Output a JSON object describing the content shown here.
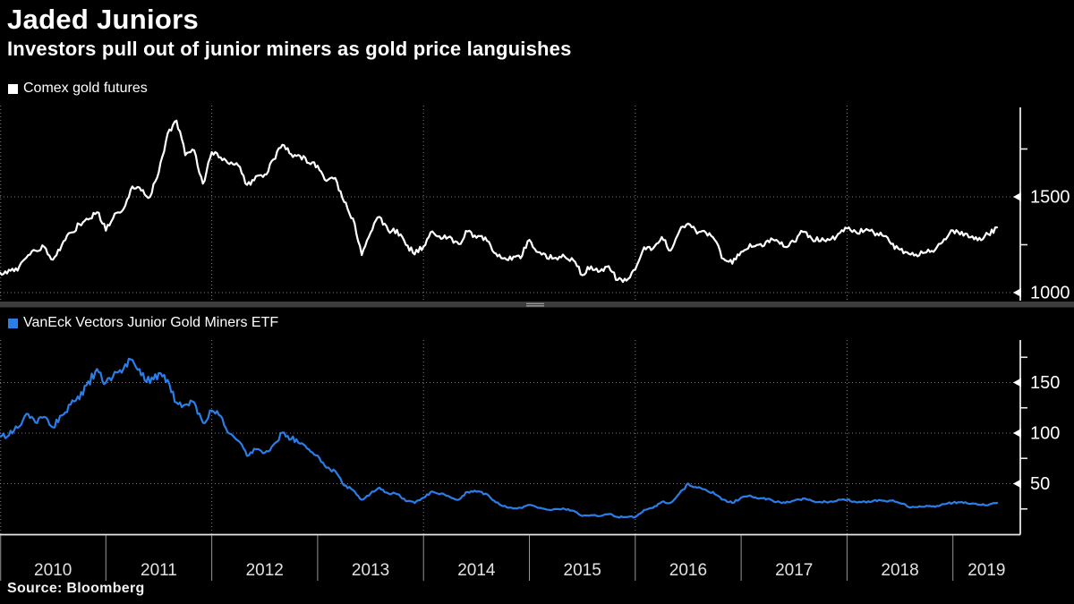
{
  "title": "Jaded Juniors",
  "subtitle": "Investors pull out of junior miners as gold price languishes",
  "source": "Source: Bloomberg",
  "colors": {
    "background": "#000000",
    "axis": "#e8e8e8",
    "grid": "#7d7d7d",
    "separator": "#3d3d3d",
    "separator_grip": "#a8a8a8",
    "year_label": "#e2e2e2",
    "tick_label": "#ffffff",
    "gold_line": "#ffffff",
    "etf_line": "#2b7de8"
  },
  "x_axis": {
    "years": [
      "2010",
      "2011",
      "2012",
      "2013",
      "2014",
      "2015",
      "2016",
      "2017",
      "2018",
      "2019"
    ],
    "gridline_years": [
      2010,
      2012,
      2014,
      2016,
      2018
    ]
  },
  "chart_data": [
    {
      "type": "line",
      "panel": "top",
      "legend": "Comex gold futures",
      "color": "#ffffff",
      "x_start": "2010-01",
      "x_end": "2019-06",
      "x_interval": "monthly",
      "ylim": [
        958,
        1977
      ],
      "yticks_labeled": [
        {
          "value": 1500,
          "label": "1500"
        },
        {
          "value": 1000,
          "label": "1000"
        }
      ],
      "yticks_minor": [
        1750,
        1250
      ],
      "grid": "dotted",
      "legend_position": "top-left",
      "values": [
        1100,
        1118,
        1116,
        1180,
        1215,
        1244,
        1170,
        1248,
        1310,
        1357,
        1386,
        1421,
        1327,
        1411,
        1439,
        1556,
        1536,
        1502,
        1628,
        1828,
        1900,
        1722,
        1746,
        1566,
        1737,
        1711,
        1668,
        1664,
        1558,
        1604,
        1615,
        1691,
        1776,
        1720,
        1715,
        1676,
        1661,
        1588,
        1595,
        1472,
        1387,
        1200,
        1313,
        1396,
        1327,
        1323,
        1250,
        1202,
        1240,
        1321,
        1284,
        1291,
        1250,
        1322,
        1282,
        1287,
        1211,
        1173,
        1176,
        1184,
        1279,
        1213,
        1183,
        1184,
        1190,
        1172,
        1095,
        1135,
        1115,
        1141,
        1065,
        1060,
        1116,
        1234,
        1234,
        1290,
        1215,
        1320,
        1357,
        1311,
        1317,
        1273,
        1174,
        1152,
        1211,
        1254,
        1247,
        1268,
        1275,
        1242,
        1268,
        1322,
        1284,
        1271,
        1273,
        1303,
        1339,
        1318,
        1325,
        1315,
        1300,
        1254,
        1223,
        1201,
        1192,
        1215,
        1220,
        1281,
        1321,
        1313,
        1292,
        1283,
        1306,
        1340
      ]
    },
    {
      "type": "line",
      "panel": "bottom",
      "legend": "VanEck Vectors Junior Gold Miners ETF",
      "color": "#2b7de8",
      "x_start": "2010-01",
      "x_end": "2019-06",
      "x_interval": "monthly",
      "ylim": [
        0,
        192
      ],
      "yticks_labeled": [
        {
          "value": 150,
          "label": "150"
        },
        {
          "value": 100,
          "label": "100"
        },
        {
          "value": 50,
          "label": "50"
        }
      ],
      "yticks_minor": [
        175,
        125,
        75,
        25
      ],
      "grid": "dotted",
      "legend_position": "top-left",
      "values": [
        97,
        98,
        106,
        118,
        110,
        116,
        105,
        118,
        128,
        134,
        150,
        162,
        150,
        160,
        165,
        172,
        158,
        150,
        158,
        152,
        130,
        128,
        130,
        110,
        122,
        118,
        100,
        92,
        78,
        84,
        80,
        88,
        100,
        95,
        90,
        84,
        78,
        66,
        62,
        48,
        44,
        34,
        40,
        46,
        40,
        40,
        33,
        31,
        36,
        42,
        40,
        37,
        34,
        42,
        42,
        40,
        33,
        28,
        26,
        26,
        29,
        26,
        24,
        25,
        25,
        23,
        18,
        19,
        18,
        20,
        17,
        17,
        17,
        24,
        26,
        32,
        31,
        40,
        50,
        46,
        44,
        40,
        34,
        31,
        36,
        38,
        35,
        35,
        32,
        31,
        33,
        35,
        33,
        32,
        32,
        34,
        34,
        32,
        32,
        33,
        33,
        33,
        31,
        27,
        27,
        28,
        27,
        30,
        31,
        32,
        30,
        29,
        29,
        31
      ]
    }
  ]
}
